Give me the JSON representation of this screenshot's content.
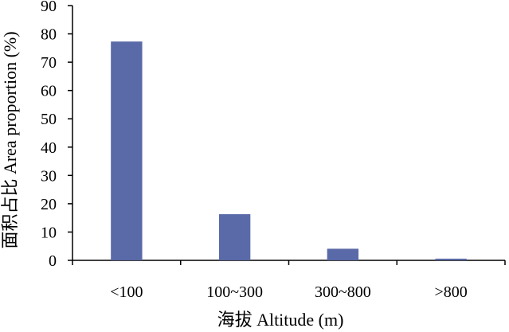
{
  "chart_data": {
    "type": "bar",
    "categories": [
      "<100",
      "100~300",
      "300~800",
      ">800"
    ],
    "values": [
      77.3,
      16.3,
      4.1,
      0.6
    ],
    "xlabel": "海拔 Altitude (m)",
    "ylabel": "面积占比 Area proportion (%)",
    "ylim": [
      0,
      90
    ],
    "yticks": [
      0,
      10,
      20,
      30,
      40,
      50,
      60,
      70,
      80,
      90
    ],
    "bar_color": "#5a6aa8",
    "grid": false,
    "legend": "none"
  }
}
